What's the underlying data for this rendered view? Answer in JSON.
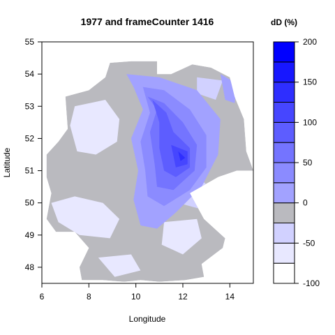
{
  "chart_data": {
    "type": "heatmap",
    "title": "1977 and frameCounter 1416",
    "xlabel": "Longitude",
    "ylabel": "Latitude",
    "xlim": [
      6,
      15
    ],
    "ylim": [
      47.5,
      55
    ],
    "x_ticks": [
      6,
      8,
      10,
      12,
      14
    ],
    "y_ticks": [
      48,
      49,
      50,
      51,
      52,
      53,
      54,
      55
    ],
    "grid": false,
    "legend": {
      "title": "dD (%)",
      "placement": "right",
      "min": -100,
      "max": 200,
      "ticks": [
        -100,
        -50,
        0,
        50,
        100,
        150,
        200
      ],
      "levels": [
        {
          "from": -100,
          "to": -75,
          "color": "#ffffff"
        },
        {
          "from": -75,
          "to": -50,
          "color": "#e8e8ff"
        },
        {
          "from": -50,
          "to": -25,
          "color": "#d1d1ff"
        },
        {
          "from": -25,
          "to": 0,
          "color": "#bababf"
        },
        {
          "from": 0,
          "to": 25,
          "color": "#a2a2ff"
        },
        {
          "from": 25,
          "to": 50,
          "color": "#8b8bff"
        },
        {
          "from": 50,
          "to": 75,
          "color": "#7474ff"
        },
        {
          "from": 75,
          "to": 100,
          "color": "#5d5dff"
        },
        {
          "from": 100,
          "to": 125,
          "color": "#4646ff"
        },
        {
          "from": 125,
          "to": 150,
          "color": "#2e2eff"
        },
        {
          "from": 150,
          "to": 175,
          "color": "#1717ff"
        },
        {
          "from": 175,
          "to": 200,
          "color": "#0000ff"
        }
      ]
    },
    "region_outline": [
      [
        9.8,
        54.4
      ],
      [
        8.9,
        54.35
      ],
      [
        8.7,
        53.9
      ],
      [
        8.0,
        53.5
      ],
      [
        7.0,
        53.3
      ],
      [
        7.1,
        52.3
      ],
      [
        6.7,
        51.9
      ],
      [
        6.2,
        51.5
      ],
      [
        6.2,
        50.8
      ],
      [
        6.4,
        50.3
      ],
      [
        6.2,
        49.5
      ],
      [
        6.6,
        49.1
      ],
      [
        7.4,
        49.1
      ],
      [
        8.0,
        48.6
      ],
      [
        7.6,
        48.0
      ],
      [
        7.7,
        47.6
      ],
      [
        8.6,
        47.6
      ],
      [
        9.5,
        47.55
      ],
      [
        10.2,
        47.6
      ],
      [
        11.0,
        47.55
      ],
      [
        12.1,
        47.6
      ],
      [
        12.9,
        47.7
      ],
      [
        12.8,
        48.1
      ],
      [
        13.7,
        48.6
      ],
      [
        13.8,
        48.9
      ],
      [
        12.9,
        49.5
      ],
      [
        12.3,
        50.3
      ],
      [
        13.5,
        50.8
      ],
      [
        14.3,
        51.0
      ],
      [
        15.0,
        51.0
      ],
      [
        14.7,
        51.6
      ],
      [
        14.6,
        52.6
      ],
      [
        14.2,
        53.3
      ],
      [
        14.0,
        53.9
      ],
      [
        13.2,
        54.2
      ],
      [
        12.4,
        54.3
      ],
      [
        11.5,
        54.0
      ],
      [
        10.9,
        54.0
      ],
      [
        10.9,
        54.4
      ]
    ],
    "zones": [
      {
        "value": -60,
        "points": [
          [
            7.4,
            53.0
          ],
          [
            8.7,
            53.2
          ],
          [
            9.3,
            52.6
          ],
          [
            9.2,
            51.9
          ],
          [
            8.3,
            51.5
          ],
          [
            7.5,
            51.6
          ],
          [
            7.2,
            52.4
          ]
        ]
      },
      {
        "value": -60,
        "points": [
          [
            6.4,
            50.0
          ],
          [
            7.4,
            50.2
          ],
          [
            8.6,
            50.0
          ],
          [
            9.3,
            49.5
          ],
          [
            8.9,
            48.9
          ],
          [
            7.6,
            49.0
          ],
          [
            6.7,
            49.4
          ]
        ]
      },
      {
        "value": -60,
        "points": [
          [
            11.2,
            49.4
          ],
          [
            12.6,
            49.5
          ],
          [
            12.8,
            48.9
          ],
          [
            12.0,
            48.4
          ],
          [
            11.1,
            48.7
          ]
        ]
      },
      {
        "value": -60,
        "points": [
          [
            8.4,
            48.3
          ],
          [
            9.8,
            48.4
          ],
          [
            10.2,
            47.9
          ],
          [
            9.1,
            47.7
          ]
        ]
      },
      {
        "value": -30,
        "points": [
          [
            11.7,
            50.6
          ],
          [
            12.8,
            50.7
          ],
          [
            13.6,
            50.2
          ],
          [
            12.8,
            49.8
          ],
          [
            11.8,
            50.0
          ]
        ]
      },
      {
        "value": -30,
        "points": [
          [
            12.6,
            53.9
          ],
          [
            13.7,
            53.8
          ],
          [
            13.4,
            53.2
          ],
          [
            12.6,
            53.4
          ]
        ]
      },
      {
        "value": 15,
        "points": [
          [
            9.6,
            54.0
          ],
          [
            11.0,
            53.9
          ],
          [
            12.6,
            53.5
          ],
          [
            13.6,
            52.6
          ],
          [
            13.5,
            51.5
          ],
          [
            12.8,
            50.5
          ],
          [
            11.7,
            49.7
          ],
          [
            10.9,
            49.2
          ],
          [
            10.2,
            49.3
          ],
          [
            9.9,
            50.1
          ],
          [
            10.1,
            51.0
          ],
          [
            9.8,
            52.0
          ],
          [
            10.3,
            52.9
          ],
          [
            9.9,
            53.6
          ]
        ]
      },
      {
        "value": 15,
        "points": [
          [
            13.6,
            54.0
          ],
          [
            14.3,
            53.7
          ],
          [
            14.2,
            53.1
          ],
          [
            13.8,
            53.2
          ]
        ]
      },
      {
        "value": 40,
        "points": [
          [
            10.3,
            53.6
          ],
          [
            11.2,
            53.5
          ],
          [
            12.3,
            52.9
          ],
          [
            13.0,
            52.1
          ],
          [
            13.0,
            51.1
          ],
          [
            12.3,
            50.4
          ],
          [
            11.2,
            49.9
          ],
          [
            10.5,
            50.2
          ],
          [
            10.4,
            51.0
          ],
          [
            10.2,
            51.9
          ],
          [
            10.6,
            52.8
          ]
        ]
      },
      {
        "value": 65,
        "points": [
          [
            10.5,
            53.3
          ],
          [
            11.2,
            53.1
          ],
          [
            12.0,
            52.5
          ],
          [
            12.6,
            51.8
          ],
          [
            12.5,
            51.0
          ],
          [
            11.6,
            50.4
          ],
          [
            10.9,
            50.5
          ],
          [
            10.8,
            51.2
          ],
          [
            10.6,
            52.2
          ],
          [
            10.9,
            52.9
          ]
        ]
      },
      {
        "value": 90,
        "points": [
          [
            10.7,
            53.2
          ],
          [
            11.3,
            52.8
          ],
          [
            11.6,
            52.2
          ],
          [
            12.3,
            51.7
          ],
          [
            12.3,
            51.1
          ],
          [
            11.7,
            50.8
          ],
          [
            11.2,
            51.0
          ],
          [
            11.0,
            51.7
          ],
          [
            11.0,
            52.5
          ]
        ]
      },
      {
        "value": 112,
        "points": [
          [
            11.5,
            51.8
          ],
          [
            12.2,
            51.6
          ],
          [
            12.2,
            51.2
          ],
          [
            11.7,
            51.1
          ]
        ]
      },
      {
        "value": 140,
        "points": [
          [
            11.8,
            51.6
          ],
          [
            12.1,
            51.4
          ],
          [
            11.9,
            51.3
          ]
        ]
      }
    ]
  }
}
